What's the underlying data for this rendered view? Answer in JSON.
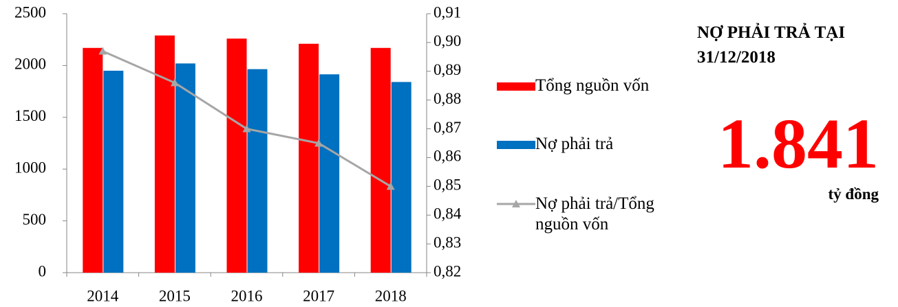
{
  "chart_data": {
    "type": "bar",
    "categories": [
      "2014",
      "2015",
      "2016",
      "2017",
      "2018"
    ],
    "series": [
      {
        "name": "Tổng nguồn vốn",
        "type": "bar",
        "color": "#ff0000",
        "values": [
          2170,
          2290,
          2260,
          2210,
          2170
        ]
      },
      {
        "name": "Nợ phải trả",
        "type": "bar",
        "color": "#0070c0",
        "values": [
          1950,
          2020,
          1965,
          1915,
          1841
        ]
      },
      {
        "name": "Nợ phải trả/Tổng nguồn vốn",
        "type": "line",
        "axis": "y2",
        "color": "#a6a6a6",
        "values": [
          0.897,
          0.886,
          0.87,
          0.865,
          0.85
        ]
      }
    ],
    "ylim": [
      0,
      2500
    ],
    "yticks": [
      0,
      500,
      1000,
      1500,
      2000,
      2500
    ],
    "y2lim": [
      0.82,
      0.91
    ],
    "y2ticks": [
      {
        "value": 0.82,
        "label": "0,82"
      },
      {
        "value": 0.83,
        "label": "0,83"
      },
      {
        "value": 0.84,
        "label": "0,84"
      },
      {
        "value": 0.85,
        "label": "0,85"
      },
      {
        "value": 0.86,
        "label": "0,86"
      },
      {
        "value": 0.87,
        "label": "0,87"
      },
      {
        "value": 0.88,
        "label": "0,88"
      },
      {
        "value": 0.89,
        "label": "0,89"
      },
      {
        "value": 0.9,
        "label": "0,90"
      },
      {
        "value": 0.91,
        "label": "0,91"
      }
    ],
    "grid": false,
    "legend": "right"
  },
  "panel": {
    "title": "NỢ PHẢI TRẢ TẠI 31/12/2018",
    "value": "1.841",
    "unit": "tỷ đồng"
  }
}
